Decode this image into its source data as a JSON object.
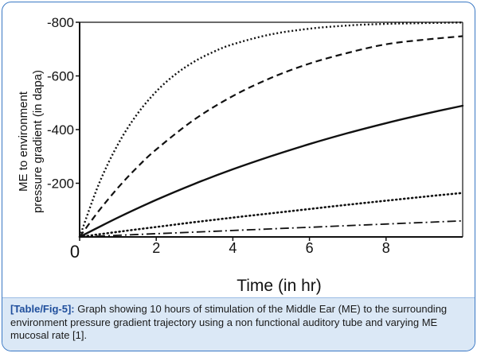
{
  "chart_data": {
    "type": "line",
    "xlabel": "Time (in hr)",
    "ylabel_lines": [
      "ME to environment",
      "pressure gradient (in dapa)"
    ],
    "xlim": [
      0,
      10
    ],
    "ylim": [
      0,
      -800
    ],
    "x_ticks": [
      0,
      2,
      4,
      6,
      8
    ],
    "y_ticks": [
      -800,
      -600,
      -400,
      -200
    ],
    "grid": false,
    "legend": "none",
    "series": [
      {
        "style": "dotted-dense",
        "x": [
          0,
          0.5,
          1,
          1.5,
          2,
          2.5,
          3,
          3.5,
          4,
          5,
          6,
          7,
          8,
          9,
          10
        ],
        "y": [
          0,
          -196,
          -345,
          -457,
          -542,
          -606,
          -654,
          -690,
          -718,
          -755,
          -776,
          -788,
          -794,
          -797,
          -799
        ]
      },
      {
        "style": "dashed",
        "x": [
          0,
          0.5,
          1,
          1.5,
          2,
          3,
          4,
          5,
          6,
          7,
          8,
          9,
          10
        ],
        "y": [
          0,
          -97,
          -183,
          -259,
          -326,
          -438,
          -525,
          -593,
          -646,
          -686,
          -718,
          -735,
          -748
        ]
      },
      {
        "style": "solid",
        "x": [
          0,
          1,
          2,
          3,
          4,
          5,
          6,
          7,
          8,
          9,
          10
        ],
        "y": [
          0,
          -72,
          -138,
          -198,
          -252,
          -301,
          -346,
          -387,
          -424,
          -458,
          -489
        ]
      },
      {
        "style": "dotted-sparse",
        "x": [
          0,
          1,
          2,
          3,
          4,
          5,
          6,
          7,
          8,
          9,
          10
        ],
        "y": [
          0,
          -19,
          -37,
          -55,
          -72,
          -88,
          -104,
          -120,
          -135,
          -150,
          -164
        ]
      },
      {
        "style": "dash-dot",
        "x": [
          0,
          1,
          2,
          3,
          4,
          5,
          6,
          7,
          8,
          9,
          10
        ],
        "y": [
          0,
          -6,
          -12,
          -18,
          -24,
          -30,
          -36,
          -42,
          -48,
          -54,
          -60
        ]
      }
    ]
  },
  "caption": {
    "tag": "[Table/Fig-5]:",
    "text": " Graph showing 10 hours of stimulation of the Middle Ear (ME) to the surrounding environment pressure gradient trajectory using a non functional auditory tube and varying ME mucosal rate [1]."
  },
  "colors": {
    "line": "#111111",
    "frame": "#3a78c4",
    "caption_bg": "#dbe8f6",
    "caption_tag": "#1f4e9c"
  }
}
